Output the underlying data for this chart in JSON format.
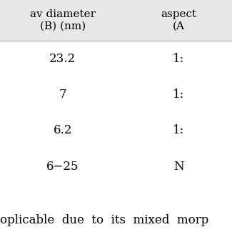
{
  "header_row": [
    "av diameter\n(B) (nm)",
    "aspect\n(A"
  ],
  "rows": [
    [
      "23.2",
      "1:"
    ],
    [
      "7",
      "1:"
    ],
    [
      "6.2",
      "1:"
    ],
    [
      "6−25",
      "N"
    ]
  ],
  "footer_text": "oplicable  due  to  its  mixed  morp",
  "bg_color": "#ffffff",
  "header_bg_color": "#e8e8e8",
  "header_fontsize": 11,
  "cell_fontsize": 12,
  "footer_fontsize": 12
}
